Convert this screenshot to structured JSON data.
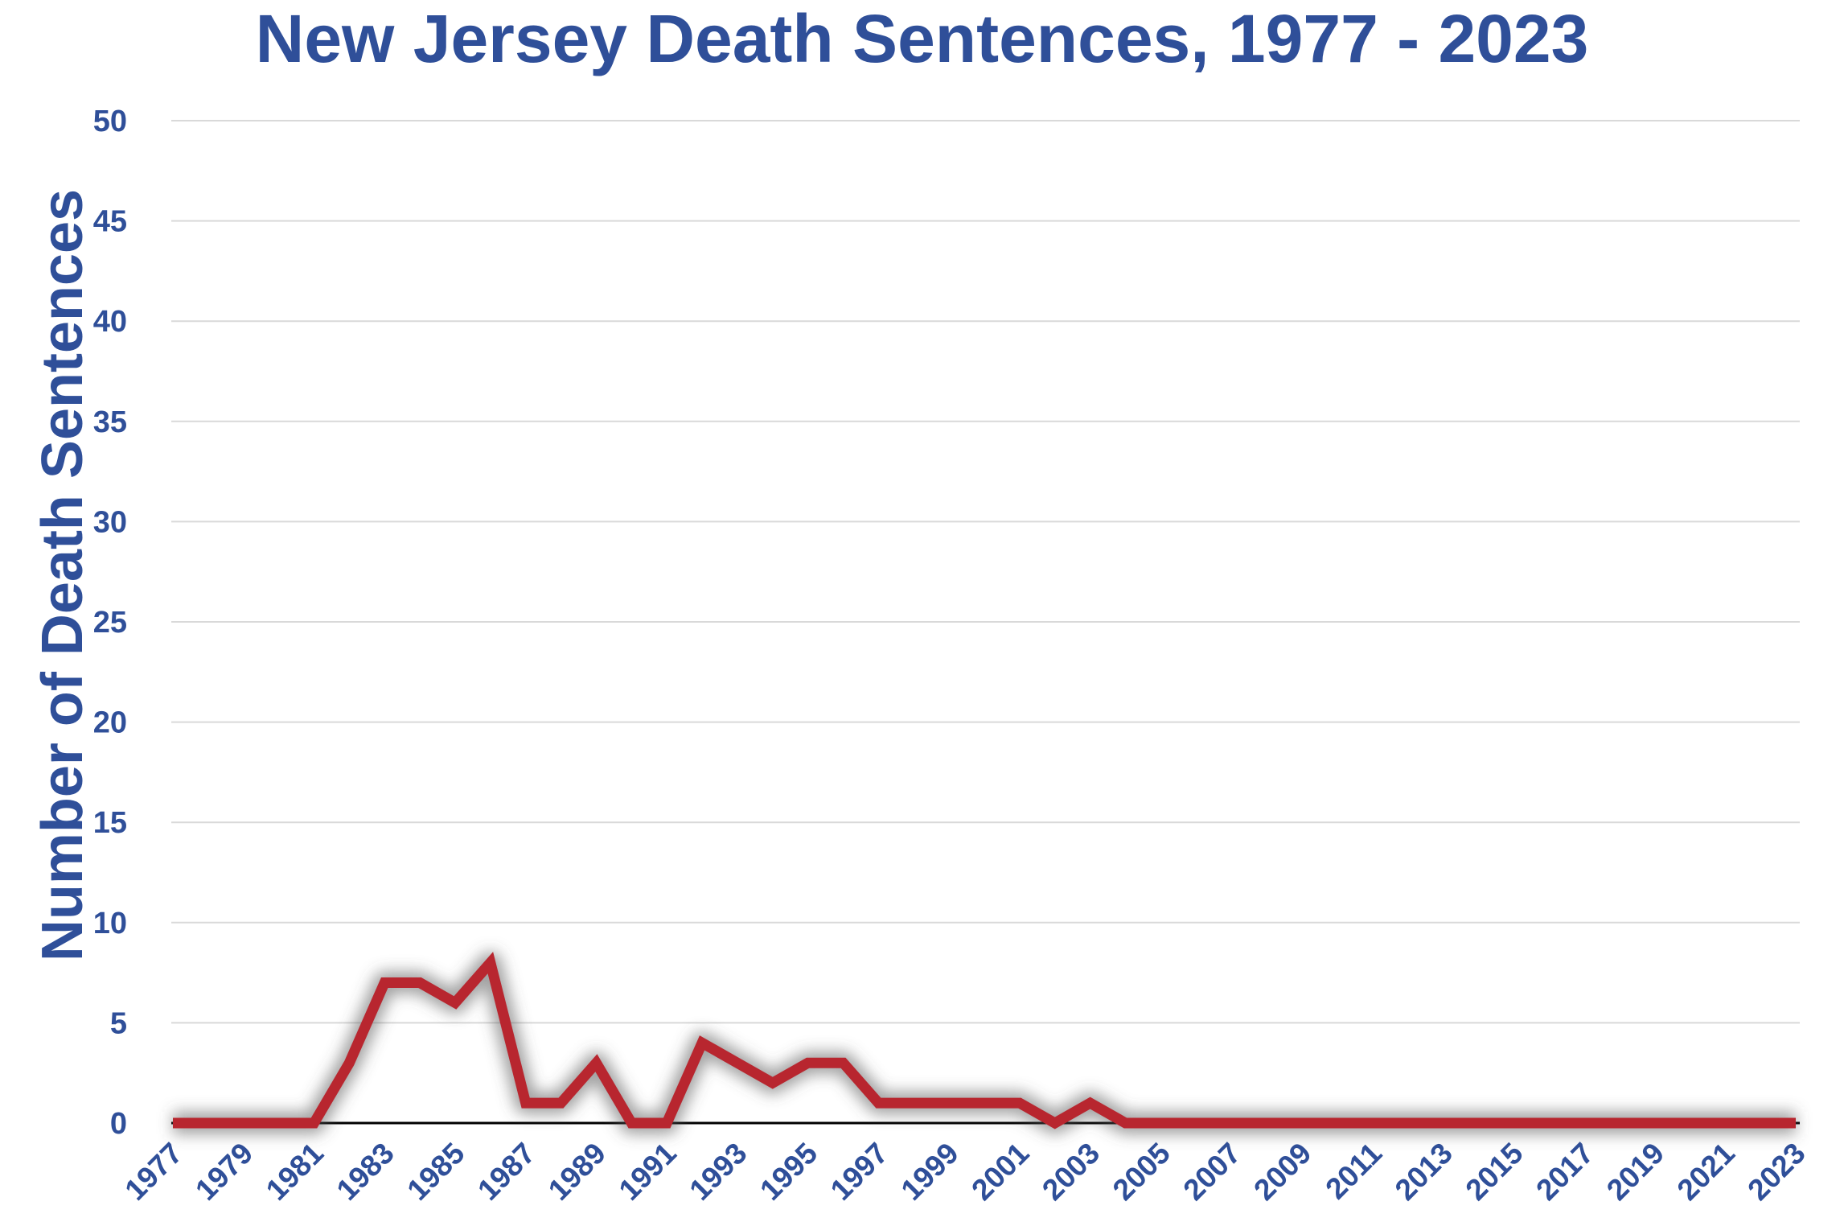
{
  "colors": {
    "text": "#2f4f99",
    "line": "#b8262f",
    "grid": "#d9d9d9",
    "axis": "#000000"
  },
  "chart_data": {
    "type": "line",
    "title": "New Jersey Death Sentences, 1977 - 2023",
    "xlabel": "",
    "ylabel": "Number of Death Sentences",
    "ylim": [
      0,
      50
    ],
    "yticks": [
      0,
      5,
      10,
      15,
      20,
      25,
      30,
      35,
      40,
      45,
      50
    ],
    "xtick_labels": [
      "1977",
      "1979",
      "1981",
      "1983",
      "1985",
      "1987",
      "1989",
      "1991",
      "1993",
      "1995",
      "1997",
      "1999",
      "2001",
      "2003",
      "2005",
      "2007",
      "2009",
      "2011",
      "2013",
      "2015",
      "2017",
      "2019",
      "2021",
      "2023"
    ],
    "grid": true,
    "legend": "none",
    "x": [
      1977,
      1978,
      1979,
      1980,
      1981,
      1982,
      1983,
      1984,
      1985,
      1986,
      1987,
      1988,
      1989,
      1990,
      1991,
      1992,
      1993,
      1994,
      1995,
      1996,
      1997,
      1998,
      1999,
      2000,
      2001,
      2002,
      2003,
      2004,
      2005,
      2006,
      2007,
      2008,
      2009,
      2010,
      2011,
      2012,
      2013,
      2014,
      2015,
      2016,
      2017,
      2018,
      2019,
      2020,
      2021,
      2022,
      2023
    ],
    "series": [
      {
        "values": [
          0,
          0,
          0,
          0,
          0,
          3,
          7,
          7,
          6,
          8,
          1,
          1,
          3,
          0,
          0,
          4,
          3,
          2,
          3,
          3,
          1,
          1,
          1,
          1,
          1,
          0,
          1,
          0,
          0,
          0,
          0,
          0,
          0,
          0,
          0,
          0,
          0,
          0,
          0,
          0,
          0,
          0,
          0,
          0,
          0,
          0,
          0
        ]
      }
    ]
  }
}
